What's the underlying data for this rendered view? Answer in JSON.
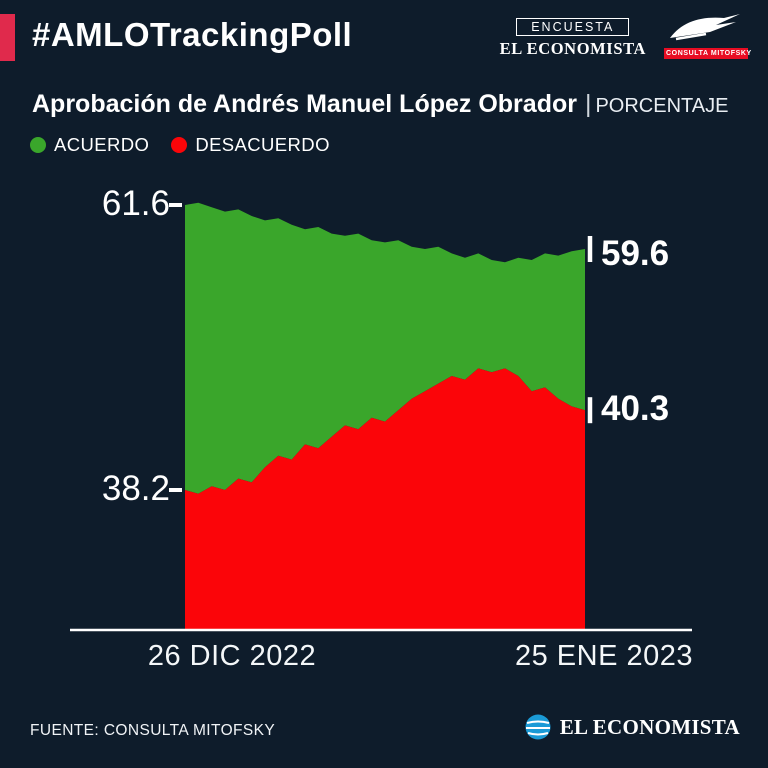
{
  "header": {
    "hashtag": "#AMLOTrackingPoll",
    "encuesta_label": "ENCUESTA",
    "brand_top": "EL ECONOMISTA",
    "mitofsky_label": "CONSULTA MITOFSKY"
  },
  "title": {
    "main": "Aprobación de Andrés Manuel López Obrador",
    "separator": "|",
    "unit": "PORCENTAJE"
  },
  "legend": [
    {
      "label": "ACUERDO",
      "color": "#3aa62b"
    },
    {
      "label": "DESACUERDO",
      "color": "#fb0509"
    }
  ],
  "chart_data": {
    "type": "area",
    "stacked": true,
    "legend_position": "top-left",
    "x_axis": {
      "start_label": "26 DIC 2022",
      "end_label": "25 ENE 2023"
    },
    "unit": "PORCENTAJE",
    "series": [
      {
        "name": "ACUERDO",
        "color": "#3aa62b",
        "start_value": 61.6,
        "end_value": 59.6,
        "start_label": "61.6",
        "end_label": "59.6",
        "values": [
          61.6,
          61.7,
          61.5,
          61.3,
          61.4,
          61.1,
          60.9,
          61.0,
          60.7,
          60.5,
          60.6,
          60.3,
          60.2,
          60.3,
          60.0,
          59.9,
          60.0,
          59.7,
          59.6,
          59.7,
          59.4,
          59.2,
          59.4,
          59.1,
          59.0,
          59.2,
          59.1,
          59.4,
          59.3,
          59.5,
          59.6
        ]
      },
      {
        "name": "DESACUERDO",
        "color": "#fb0509",
        "start_value": 38.2,
        "end_value": 40.3,
        "start_label": "38.2",
        "end_label": "40.3",
        "values": [
          38.2,
          38.1,
          38.3,
          38.2,
          38.5,
          38.4,
          38.8,
          39.1,
          39.0,
          39.4,
          39.3,
          39.6,
          39.9,
          39.8,
          40.1,
          40.0,
          40.3,
          40.6,
          40.8,
          41.0,
          41.2,
          41.1,
          41.4,
          41.3,
          41.4,
          41.2,
          40.8,
          40.9,
          40.6,
          40.4,
          40.3
        ]
      }
    ]
  },
  "footer": {
    "source": "FUENTE: CONSULTA MITOFSKY",
    "brand": "EL ECONOMISTA"
  },
  "colors": {
    "background": "#0e1c2b",
    "accent": "#e02a4c",
    "green": "#3aa62b",
    "red": "#fb0509",
    "mitofsky_red": "#e80d23",
    "economista_blue": "#1a9ad6"
  }
}
